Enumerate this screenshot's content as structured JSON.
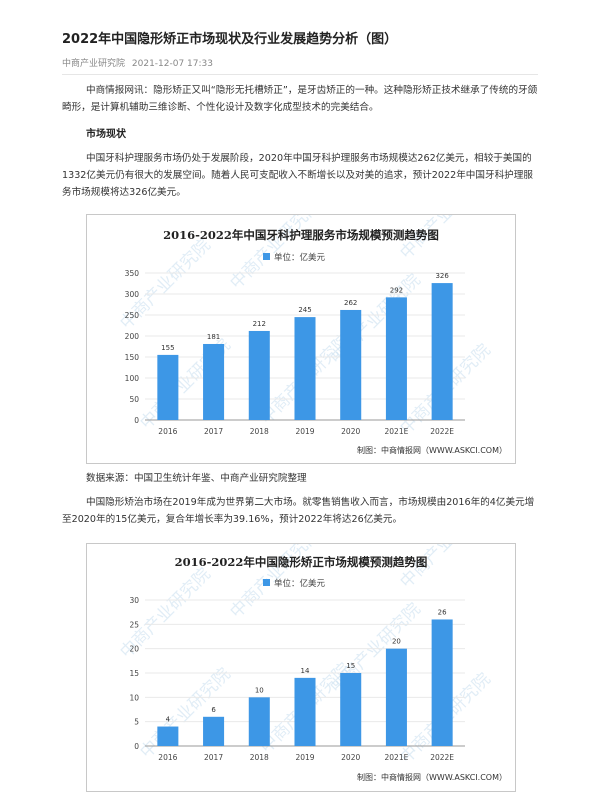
{
  "article": {
    "title": "2022年中国隐形矫正市场现状及行业发展趋势分析（图）",
    "source": "中商产业研究院",
    "date": "2021-12-07 17:33",
    "intro": "中商情报网讯：隐形矫正又叫“隐形无托槽矫正”，是牙齿矫正的一种。这种隐形矫正技术继承了传统的牙颌畸形，是计算机辅助三维诊断、个性化设计及数字化成型技术的完美结合。",
    "section_heading": "市场现状",
    "para1": "中国牙科护理服务市场仍处于发展阶段，2020年中国牙科护理服务市场规模达262亿美元，相较于美国的1332亿美元仍有很大的发展空间。随着人民可支配收入不断增长以及对美的追求，预计2022年中国牙科护理服务市场规模将达326亿美元。",
    "data_source": "数据来源：中国卫生统计年鉴、中商产业研究院整理",
    "para2": "中国隐形矫治市场在2019年成为世界第二大市场。就零售销售收入而言，市场规模由2016年的4亿美元增至2020年的15亿美元，复合年增长率为39.16%，预计2022年将达26亿美元。"
  },
  "watermark_text": "中商产业研究院",
  "colors": {
    "bar": "#3d97e6",
    "grid": "#e9e9e9",
    "axis": "#999999"
  },
  "chart_data": [
    {
      "type": "bar",
      "title": "2016-2022年中国牙科护理服务市场规模预测趋势图",
      "legend": "单位：亿美元",
      "categories": [
        "2016",
        "2017",
        "2018",
        "2019",
        "2020",
        "2021E",
        "2022E"
      ],
      "values": [
        155,
        181,
        212,
        245,
        262,
        292,
        326
      ],
      "ylim": [
        0,
        350
      ],
      "yticks": [
        0,
        50,
        100,
        150,
        200,
        250,
        300,
        350
      ],
      "grid": true,
      "legend_position": "top-center",
      "credit": "制图：中商情报网（WWW.ASKCI.COM）"
    },
    {
      "type": "bar",
      "title": "2016-2022年中国隐形矫正市场规模预测趋势图",
      "legend": "单位：亿美元",
      "categories": [
        "2016",
        "2017",
        "2018",
        "2019",
        "2020",
        "2021E",
        "2022E"
      ],
      "values": [
        4,
        6,
        10,
        14,
        15,
        20,
        26
      ],
      "ylim": [
        0,
        30
      ],
      "yticks": [
        0,
        5,
        10,
        15,
        20,
        25,
        30
      ],
      "grid": true,
      "legend_position": "top-center",
      "credit": "制图：中商情报网（WWW.ASKCI.COM）"
    }
  ]
}
